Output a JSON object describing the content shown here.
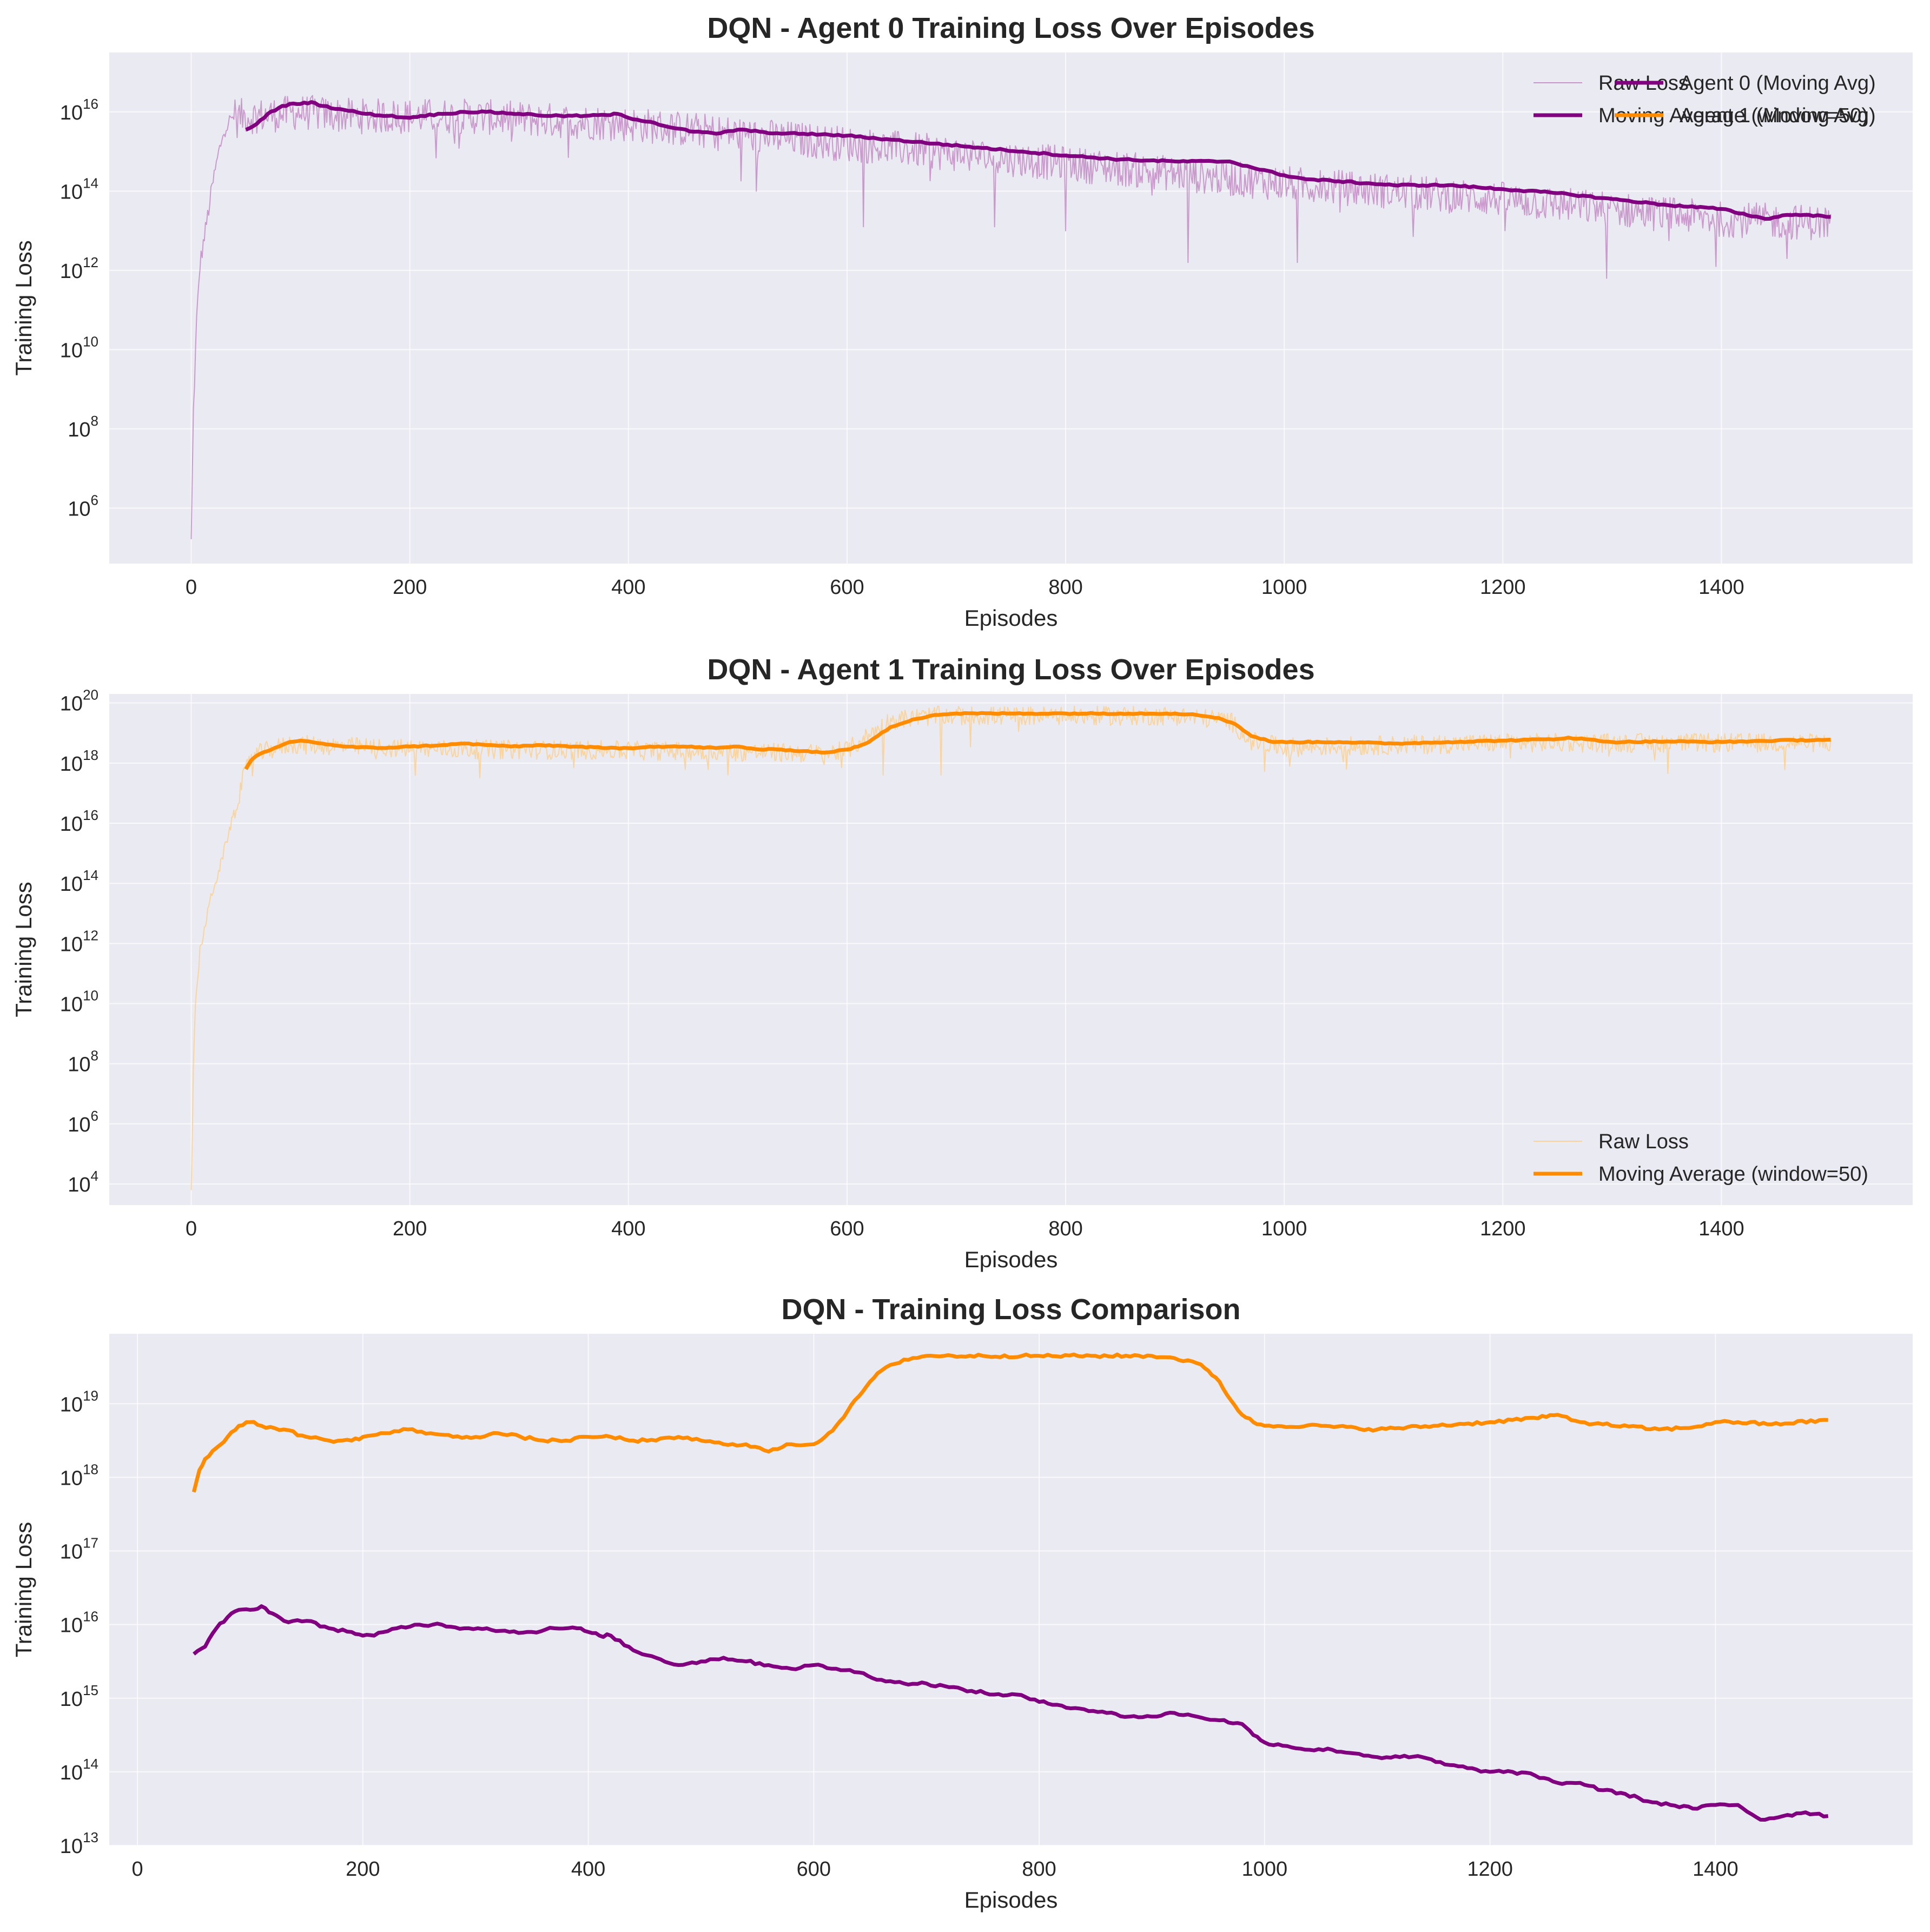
{
  "chart_data": [
    {
      "type": "line",
      "title": "DQN - Agent 0 Training Loss Over Episodes",
      "xlabel": "Episodes",
      "ylabel": "Training Loss",
      "yscale": "log",
      "xlim": [
        -75,
        1575
      ],
      "ylim_log10": [
        4.6,
        17.5
      ],
      "xticks": [
        0,
        200,
        400,
        600,
        800,
        1000,
        1200,
        1400
      ],
      "yticks_log10": [
        6,
        8,
        10,
        12,
        14,
        16
      ],
      "grid": true,
      "legend_position": "top-right",
      "series": [
        {
          "name": "Raw Loss",
          "color": "#bf7fbf",
          "style": "thin-noisy",
          "trend_x": [
            0,
            2,
            5,
            8,
            12,
            16,
            20,
            25,
            30,
            40,
            50,
            60,
            80,
            100,
            150,
            250,
            400,
            600,
            800,
            1000,
            1200,
            1400,
            1500
          ],
          "trend_log10": [
            5.2,
            8.5,
            10.8,
            12.2,
            12.9,
            13.6,
            14.3,
            15.0,
            15.6,
            16.0,
            16.0,
            16.0,
            16.05,
            16.1,
            16.0,
            16.0,
            15.8,
            15.3,
            14.8,
            14.3,
            13.9,
            13.4,
            13.3
          ],
          "noise": 0.45,
          "dips": [
            [
              517,
              14.0
            ],
            [
              615,
              13.1
            ],
            [
              735,
              13.1
            ],
            [
              800,
              13.0
            ],
            [
              912,
              12.2
            ],
            [
              1012,
              12.2
            ],
            [
              1295,
              11.8
            ],
            [
              1395,
              12.1
            ],
            [
              1460,
              12.3
            ]
          ]
        },
        {
          "name": "Moving Average (window=50)",
          "color": "#800080",
          "style": "thick",
          "x": [
            50,
            60,
            70,
            80,
            90,
            100,
            110,
            120,
            140,
            160,
            180,
            200,
            210,
            230,
            250,
            270,
            300,
            330,
            360,
            380,
            390,
            400,
            420,
            440,
            460,
            480,
            500,
            520,
            540,
            560,
            600,
            640,
            680,
            720,
            760,
            800,
            850,
            900,
            950,
            970,
            1000,
            1020,
            1050,
            1100,
            1150,
            1200,
            1250,
            1300,
            1350,
            1400,
            1440,
            1460,
            1480,
            1500
          ],
          "log10": [
            15.55,
            15.7,
            15.95,
            16.1,
            16.2,
            16.2,
            16.25,
            16.15,
            16.05,
            15.95,
            15.9,
            15.85,
            15.9,
            15.95,
            16.0,
            16.0,
            15.95,
            15.9,
            15.9,
            15.92,
            15.95,
            15.85,
            15.75,
            15.6,
            15.5,
            15.45,
            15.55,
            15.5,
            15.45,
            15.45,
            15.4,
            15.3,
            15.2,
            15.1,
            15.0,
            14.9,
            14.8,
            14.75,
            14.75,
            14.6,
            14.4,
            14.3,
            14.25,
            14.15,
            14.15,
            14.05,
            13.95,
            13.8,
            13.65,
            13.55,
            13.3,
            13.4,
            13.4,
            13.35
          ]
        }
      ]
    },
    {
      "type": "line",
      "title": "DQN - Agent 1 Training Loss Over Episodes",
      "xlabel": "Episodes",
      "ylabel": "Training Loss",
      "yscale": "log",
      "xlim": [
        -75,
        1575
      ],
      "ylim_log10": [
        3.3,
        20.3
      ],
      "xticks": [
        0,
        200,
        400,
        600,
        800,
        1000,
        1200,
        1400
      ],
      "yticks_log10": [
        4,
        6,
        8,
        10,
        12,
        14,
        16,
        18,
        20
      ],
      "grid": true,
      "legend_position": "bottom-right",
      "series": [
        {
          "name": "Raw Loss",
          "color": "#ffcc80",
          "style": "thin-noisy",
          "trend_x": [
            0,
            2,
            4,
            8,
            12,
            18,
            25,
            32,
            40,
            48,
            55,
            70,
            90,
            200,
            400,
            580,
            600,
            620,
            640,
            680,
            900,
            950,
            970,
            1000,
            1200,
            1500
          ],
          "trend_log10": [
            3.7,
            8.0,
            10.0,
            11.8,
            12.5,
            13.6,
            14.4,
            15.4,
            16.5,
            17.6,
            18.3,
            18.5,
            18.7,
            18.55,
            18.5,
            18.4,
            18.5,
            19.0,
            19.5,
            19.65,
            19.65,
            19.5,
            18.8,
            18.6,
            18.75,
            18.75
          ],
          "noise": 0.32,
          "dips": [
            [
              633,
              17.6
            ],
            [
              686,
              17.6
            ],
            [
              1005,
              17.9
            ]
          ]
        },
        {
          "name": "Moving Average (window=50)",
          "color": "#ff8c00",
          "style": "thick",
          "x": [
            50,
            55,
            60,
            70,
            80,
            90,
            100,
            120,
            140,
            170,
            200,
            230,
            250,
            270,
            300,
            320,
            350,
            380,
            400,
            420,
            450,
            480,
            500,
            520,
            540,
            560,
            580,
            600,
            610,
            620,
            640,
            660,
            680,
            700,
            750,
            800,
            850,
            900,
            920,
            940,
            955,
            970,
            990,
            1050,
            1100,
            1150,
            1200,
            1250,
            1260,
            1300,
            1350,
            1400,
            1450,
            1500
          ],
          "log10": [
            17.8,
            18.1,
            18.25,
            18.4,
            18.55,
            18.7,
            18.75,
            18.65,
            18.55,
            18.5,
            18.55,
            18.6,
            18.65,
            18.6,
            18.55,
            18.6,
            18.55,
            18.5,
            18.5,
            18.55,
            18.55,
            18.5,
            18.55,
            18.45,
            18.45,
            18.4,
            18.35,
            18.45,
            18.55,
            18.7,
            19.2,
            19.45,
            19.6,
            19.65,
            19.65,
            19.65,
            19.65,
            19.65,
            19.6,
            19.5,
            19.3,
            18.9,
            18.7,
            18.7,
            18.65,
            18.7,
            18.75,
            18.8,
            18.85,
            18.7,
            18.72,
            18.7,
            18.75,
            18.78
          ]
        }
      ]
    },
    {
      "type": "line",
      "title": "DQN - Training Loss Comparison",
      "xlabel": "Episodes",
      "ylabel": "Training Loss",
      "yscale": "log",
      "xlim": [
        -25,
        1575
      ],
      "ylim_log10": [
        13,
        19.95
      ],
      "xticks": [
        0,
        200,
        400,
        600,
        800,
        1000,
        1200,
        1400
      ],
      "yticks_log10": [
        13,
        14,
        15,
        16,
        17,
        18,
        19
      ],
      "grid": true,
      "legend_position": "top-right",
      "series": [
        {
          "name": "Agent 0 (Moving Avg)",
          "color": "#800080",
          "style": "thick",
          "x": [
            50,
            60,
            70,
            80,
            90,
            100,
            110,
            120,
            130,
            150,
            170,
            190,
            200,
            210,
            230,
            250,
            270,
            290,
            310,
            330,
            350,
            370,
            390,
            400,
            410,
            420,
            440,
            460,
            480,
            500,
            520,
            540,
            560,
            580,
            600,
            620,
            640,
            660,
            680,
            700,
            720,
            740,
            760,
            780,
            800,
            820,
            840,
            860,
            880,
            900,
            920,
            940,
            960,
            980,
            990,
            1000,
            1020,
            1040,
            1060,
            1080,
            1100,
            1120,
            1140,
            1160,
            1180,
            1200,
            1220,
            1240,
            1260,
            1280,
            1300,
            1320,
            1340,
            1360,
            1380,
            1400,
            1420,
            1440,
            1460,
            1480,
            1500
          ],
          "log10": [
            15.6,
            15.7,
            15.95,
            16.1,
            16.2,
            16.2,
            16.25,
            16.15,
            16.05,
            16.05,
            15.95,
            15.9,
            15.85,
            15.85,
            15.95,
            16.0,
            16.0,
            15.95,
            15.95,
            15.9,
            15.9,
            15.95,
            15.95,
            15.9,
            15.85,
            15.85,
            15.65,
            15.55,
            15.45,
            15.5,
            15.55,
            15.5,
            15.45,
            15.4,
            15.45,
            15.4,
            15.35,
            15.25,
            15.2,
            15.2,
            15.15,
            15.1,
            15.05,
            15.05,
            14.95,
            14.9,
            14.85,
            14.8,
            14.75,
            14.75,
            14.8,
            14.75,
            14.7,
            14.65,
            14.5,
            14.4,
            14.35,
            14.3,
            14.3,
            14.25,
            14.2,
            14.2,
            14.2,
            14.1,
            14.05,
            14.0,
            14.0,
            13.95,
            13.85,
            13.85,
            13.75,
            13.7,
            13.6,
            13.55,
            13.5,
            13.55,
            13.55,
            13.35,
            13.4,
            13.45,
            13.4
          ]
        },
        {
          "name": "Agent 1 (Moving Avg)",
          "color": "#ff8c00",
          "style": "thick",
          "x": [
            50,
            55,
            60,
            70,
            80,
            90,
            100,
            110,
            130,
            150,
            170,
            190,
            200,
            220,
            240,
            260,
            280,
            300,
            320,
            340,
            360,
            380,
            400,
            420,
            440,
            460,
            480,
            500,
            520,
            540,
            560,
            580,
            600,
            610,
            620,
            630,
            640,
            650,
            660,
            680,
            700,
            750,
            800,
            850,
            900,
            920,
            940,
            950,
            960,
            970,
            980,
            990,
            1000,
            1050,
            1100,
            1150,
            1200,
            1220,
            1250,
            1260,
            1280,
            1300,
            1350,
            1380,
            1400,
            1420,
            1450,
            1500
          ],
          "log10": [
            17.8,
            18.1,
            18.25,
            18.4,
            18.55,
            18.7,
            18.75,
            18.7,
            18.65,
            18.55,
            18.5,
            18.5,
            18.55,
            18.6,
            18.65,
            18.6,
            18.55,
            18.55,
            18.6,
            18.55,
            18.5,
            18.5,
            18.55,
            18.55,
            18.5,
            18.5,
            18.55,
            18.5,
            18.45,
            18.45,
            18.35,
            18.45,
            18.45,
            18.55,
            18.7,
            18.9,
            19.1,
            19.3,
            19.45,
            19.6,
            19.65,
            19.65,
            19.65,
            19.65,
            19.65,
            19.62,
            19.55,
            19.45,
            19.3,
            19.05,
            18.85,
            18.75,
            18.7,
            18.7,
            18.65,
            18.7,
            18.75,
            18.78,
            18.82,
            18.85,
            18.75,
            18.72,
            18.65,
            18.68,
            18.75,
            18.75,
            18.72,
            18.78
          ]
        }
      ]
    }
  ],
  "colors": {
    "plot_background": "#eaeaf2",
    "grid": "#ffffff",
    "text": "#262626"
  }
}
